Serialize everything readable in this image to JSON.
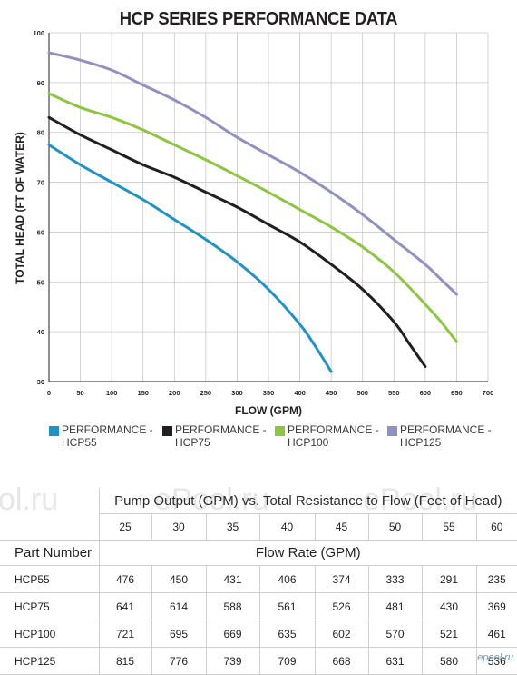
{
  "chart_data": {
    "type": "line",
    "title": "HCP SERIES PERFORMANCE DATA",
    "xlabel": "FLOW (GPM)",
    "ylabel": "TOTAL HEAD (FT OF WATER)",
    "xlim": [
      0,
      700
    ],
    "ylim": [
      30,
      100
    ],
    "xticks": [
      "0",
      "50",
      "100",
      "150",
      "200",
      "250",
      "300",
      "350",
      "400",
      "450",
      "500",
      "550",
      "600",
      "650",
      "700"
    ],
    "yticks": [
      "30",
      "40",
      "50",
      "60",
      "70",
      "80",
      "90",
      "100"
    ],
    "legend_position": "bottom",
    "series": [
      {
        "name_line1": "PERFORMANCE -",
        "name_line2": "HCP55",
        "color": "#1f93c8",
        "x": [
          0,
          50,
          100,
          150,
          200,
          250,
          300,
          350,
          400,
          425,
          450
        ],
        "y": [
          77.5,
          73.5,
          70,
          66.5,
          62.5,
          58.5,
          54,
          48.5,
          41.5,
          37,
          32
        ]
      },
      {
        "name_line1": "PERFORMANCE -",
        "name_line2": "HCP75",
        "color": "#231f20",
        "x": [
          0,
          50,
          100,
          150,
          200,
          250,
          300,
          350,
          400,
          450,
          500,
          550,
          575,
          600
        ],
        "y": [
          83,
          79.5,
          76.5,
          73.5,
          71,
          68,
          65,
          61.5,
          58,
          53.5,
          48.5,
          42,
          37.5,
          33
        ]
      },
      {
        "name_line1": "PERFORMANCE -",
        "name_line2": "HCP100",
        "color": "#8dc63f",
        "x": [
          0,
          50,
          100,
          150,
          200,
          250,
          300,
          350,
          400,
          450,
          500,
          550,
          600,
          625,
          650
        ],
        "y": [
          87.8,
          85,
          83,
          80.5,
          77.5,
          74.5,
          71.3,
          68,
          64.5,
          61,
          57,
          52,
          45.5,
          42,
          38
        ]
      },
      {
        "name_line1": "PERFORMANCE -",
        "name_line2": "HCP125",
        "color": "#8f91c2",
        "x": [
          0,
          50,
          100,
          150,
          200,
          250,
          300,
          350,
          400,
          450,
          500,
          550,
          600,
          625,
          650
        ],
        "y": [
          96,
          94.5,
          92.5,
          89.5,
          86.5,
          83,
          79,
          75.5,
          72,
          68,
          63.5,
          58.5,
          53.5,
          50.5,
          47.5
        ]
      }
    ]
  },
  "table": {
    "header_title": "Pump Output (GPM) vs. Total Resistance to Flow (Feet of Head)",
    "head_values": [
      "25",
      "30",
      "35",
      "40",
      "45",
      "50",
      "55",
      "60"
    ],
    "part_number_label": "Part Number",
    "flow_rate_label": "Flow Rate (GPM)",
    "rows": [
      {
        "part": "HCP55",
        "values": [
          "476",
          "450",
          "431",
          "406",
          "374",
          "333",
          "291",
          "235"
        ]
      },
      {
        "part": "HCP75",
        "values": [
          "641",
          "614",
          "588",
          "561",
          "526",
          "481",
          "430",
          "369"
        ]
      },
      {
        "part": "HCP100",
        "values": [
          "721",
          "695",
          "669",
          "635",
          "602",
          "570",
          "521",
          "461"
        ]
      },
      {
        "part": "HCP125",
        "values": [
          "815",
          "776",
          "739",
          "709",
          "668",
          "631",
          "580",
          "536"
        ]
      }
    ]
  },
  "watermarks": [
    "ol.ru",
    "ePool.ru",
    "ePool.ru"
  ],
  "brand": "epool.ru"
}
